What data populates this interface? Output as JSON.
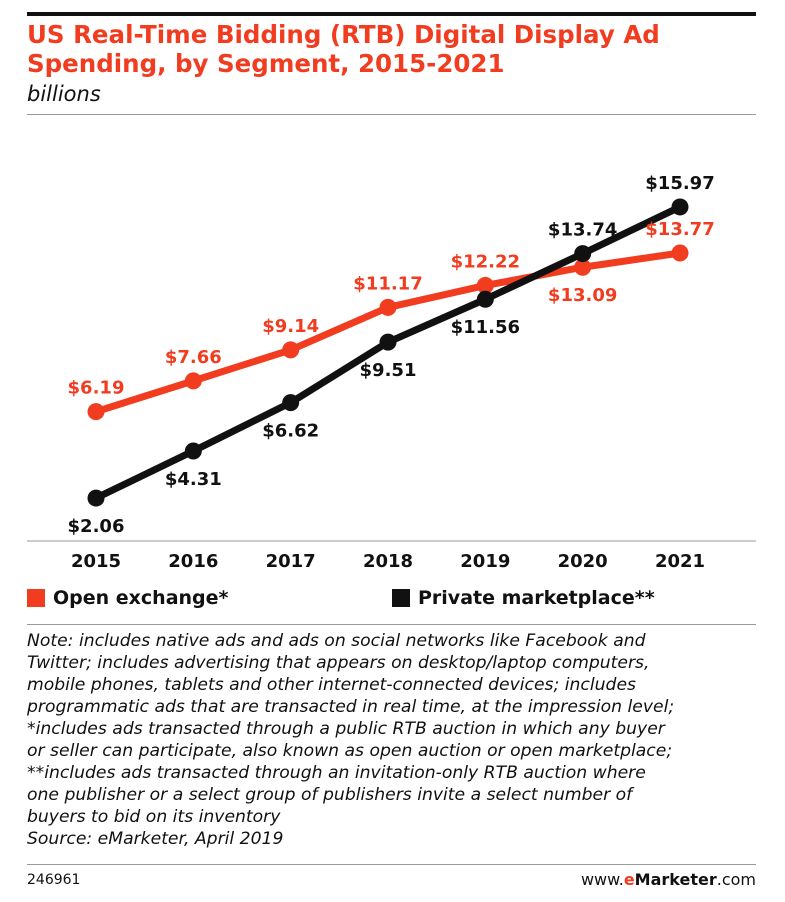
{
  "header": {
    "title": "US Real-Time Bidding (RTB) Digital Display Ad Spending, by Segment, 2015-2021",
    "subtitle": "billions"
  },
  "colors": {
    "accent": "#f13c20",
    "dark": "#111111"
  },
  "chart_data": {
    "type": "line",
    "title": "US Real-Time Bidding (RTB) Digital Display Ad Spending, by Segment, 2015-2021",
    "subtitle": "billions",
    "xlabel": "",
    "ylabel": "",
    "x": [
      "2015",
      "2016",
      "2017",
      "2018",
      "2019",
      "2020",
      "2021"
    ],
    "ylim": [
      0,
      18
    ],
    "grid": false,
    "legend_position": "bottom",
    "series": [
      {
        "name": "Open exchange*",
        "color": "#f13c20",
        "values": [
          6.19,
          7.66,
          9.14,
          11.17,
          12.22,
          13.09,
          13.77
        ],
        "labels": [
          "$6.19",
          "$7.66",
          "$9.14",
          "$11.17",
          "$12.22",
          "$13.09",
          "$13.77"
        ]
      },
      {
        "name": "Private marketplace**",
        "color": "#111111",
        "values": [
          2.06,
          4.31,
          6.62,
          9.51,
          11.56,
          13.74,
          15.97
        ],
        "labels": [
          "$2.06",
          "$4.31",
          "$6.62",
          "$9.51",
          "$11.56",
          "$13.74",
          "$15.97"
        ]
      }
    ]
  },
  "note_lines": [
    "Note: includes native ads and ads on social networks like Facebook and",
    "Twitter; includes advertising that appears on desktop/laptop computers,",
    "mobile phones, tablets and other internet-connected devices; includes",
    "programmatic ads that are transacted in real time, at the impression level;",
    "*includes ads transacted through a public RTB auction in which any buyer",
    "or seller can participate, also known as open auction or open marketplace;",
    "**includes ads transacted through an invitation-only RTB auction where",
    "one publisher or a select group of publishers invite a select number of",
    "buyers to bid on its inventory",
    "Source: eMarketer, April 2019"
  ],
  "footer": {
    "chart_id": "246961",
    "site_prefix": "www.",
    "site_e": "e",
    "site_brand": "Marketer",
    "site_suffix": ".com"
  }
}
